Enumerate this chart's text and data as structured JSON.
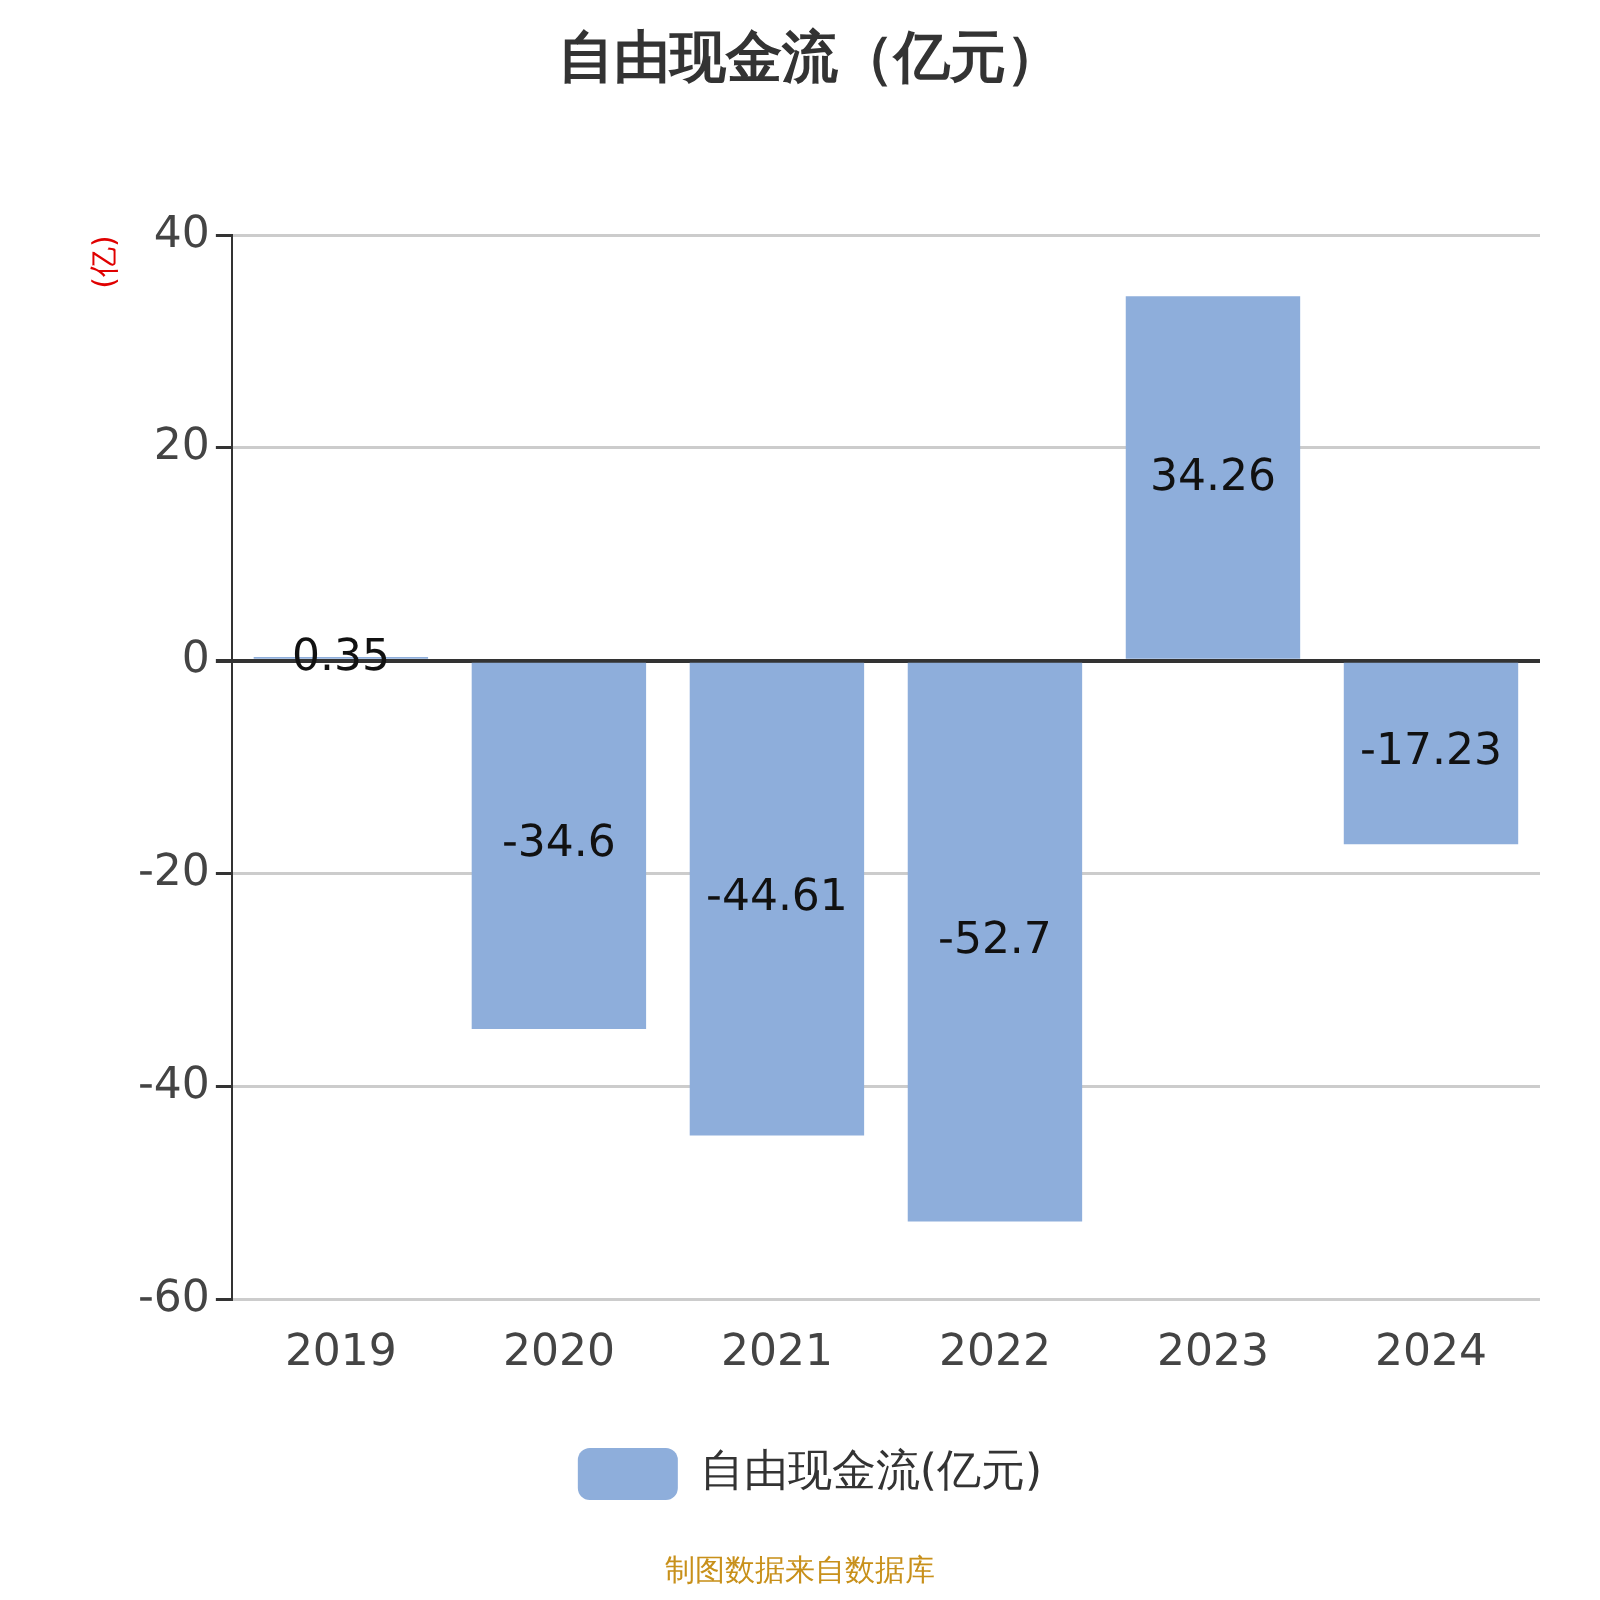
{
  "chart_data": {
    "type": "bar",
    "title": "自由现金流（亿元）",
    "ylabel": "(亿)",
    "categories": [
      "2019",
      "2020",
      "2021",
      "2022",
      "2023",
      "2024"
    ],
    "series": [
      {
        "name": "自由现金流(亿元)",
        "color": "#8eaedb",
        "values": [
          0.35,
          -34.6,
          -44.61,
          -52.7,
          34.26,
          -17.23
        ]
      }
    ],
    "ylim": [
      -60,
      40
    ],
    "yticks": [
      -60,
      -40,
      -20,
      0,
      20,
      40
    ],
    "grid": "y",
    "legend": "bottom",
    "data_labels": true,
    "annotations": [
      "制图数据来自数据库"
    ]
  }
}
